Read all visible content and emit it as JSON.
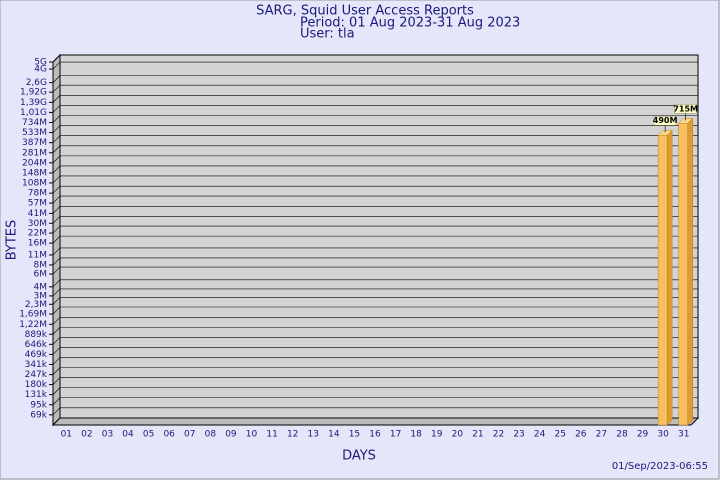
{
  "chart_data": {
    "type": "bar",
    "title": "SARG, Squid User Access Reports",
    "subtitle": "Period: 01 Aug 2023-31 Aug 2023",
    "user": "User: tla",
    "x_label": "DAYS",
    "y_label": "BYTES",
    "timestamp": "01/Sep/2023-06:55",
    "categories": [
      "01",
      "02",
      "03",
      "04",
      "05",
      "06",
      "07",
      "08",
      "09",
      "10",
      "11",
      "12",
      "13",
      "14",
      "15",
      "16",
      "17",
      "18",
      "19",
      "20",
      "21",
      "22",
      "23",
      "24",
      "25",
      "26",
      "27",
      "28",
      "29",
      "30",
      "31"
    ],
    "values": [
      null,
      null,
      null,
      null,
      null,
      null,
      null,
      null,
      null,
      null,
      null,
      null,
      null,
      null,
      null,
      null,
      null,
      null,
      null,
      null,
      null,
      null,
      null,
      null,
      null,
      null,
      null,
      null,
      null,
      490000000,
      715000000
    ],
    "value_labels": [
      null,
      null,
      null,
      null,
      null,
      null,
      null,
      null,
      null,
      null,
      null,
      null,
      null,
      null,
      null,
      null,
      null,
      null,
      null,
      null,
      null,
      null,
      null,
      null,
      null,
      null,
      null,
      null,
      null,
      "490M",
      "715M"
    ],
    "color": "#f8c060",
    "log_scale": true,
    "grid": true,
    "ylim": [
      50000,
      5000000000
    ],
    "yticks": [
      {
        "value": 5000000000,
        "label": "5G"
      },
      {
        "value": 4000000000,
        "label": "4G"
      },
      {
        "value": 2600000000,
        "label": "2,6G"
      },
      {
        "value": 1920000000,
        "label": "1,92G"
      },
      {
        "value": 1390000000,
        "label": "1,39G"
      },
      {
        "value": 1010000000,
        "label": "1,01G"
      },
      {
        "value": 734000000,
        "label": "734M"
      },
      {
        "value": 533000000,
        "label": "533M"
      },
      {
        "value": 387000000,
        "label": "387M"
      },
      {
        "value": 281000000,
        "label": "281M"
      },
      {
        "value": 204000000,
        "label": "204M"
      },
      {
        "value": 148000000,
        "label": "148M"
      },
      {
        "value": 108000000,
        "label": "108M"
      },
      {
        "value": 78000000,
        "label": "78M"
      },
      {
        "value": 57000000,
        "label": "57M"
      },
      {
        "value": 41000000,
        "label": "41M"
      },
      {
        "value": 30000000,
        "label": "30M"
      },
      {
        "value": 22000000,
        "label": "22M"
      },
      {
        "value": 16000000,
        "label": "16M"
      },
      {
        "value": 11000000,
        "label": "11M"
      },
      {
        "value": 8000000,
        "label": "8M"
      },
      {
        "value": 6000000,
        "label": "6M"
      },
      {
        "value": 4000000,
        "label": "4M"
      },
      {
        "value": 3000000,
        "label": "3M"
      },
      {
        "value": 2300000,
        "label": "2,3M"
      },
      {
        "value": 1690000,
        "label": "1,69M"
      },
      {
        "value": 1220000,
        "label": "1,22M"
      },
      {
        "value": 889000,
        "label": "889k"
      },
      {
        "value": 646000,
        "label": "646k"
      },
      {
        "value": 469000,
        "label": "469k"
      },
      {
        "value": 341000,
        "label": "341k"
      },
      {
        "value": 247000,
        "label": "247k"
      },
      {
        "value": 180000,
        "label": "180k"
      },
      {
        "value": 131000,
        "label": "131k"
      },
      {
        "value": 95000,
        "label": "95k"
      },
      {
        "value": 69000,
        "label": "69k"
      }
    ]
  }
}
